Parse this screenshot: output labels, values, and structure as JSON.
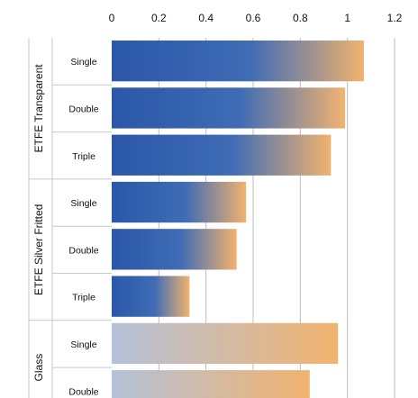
{
  "chart_data": {
    "type": "bar",
    "orientation": "horizontal",
    "xlim": [
      0,
      1.2
    ],
    "x_ticks": [
      "0",
      "0.2",
      "0.4",
      "0.6",
      "0.8",
      "1",
      "1.2"
    ],
    "groups": [
      {
        "name": "ETFE Transparent",
        "categories": [
          "Single",
          "Double",
          "Triple"
        ],
        "values": [
          1.07,
          0.99,
          0.93
        ]
      },
      {
        "name": "ETFE Silver Fritted",
        "categories": [
          "Single",
          "Double",
          "Triple"
        ],
        "values": [
          0.57,
          0.53,
          0.33
        ]
      },
      {
        "name": "Glass",
        "categories": [
          "Single",
          "Double"
        ],
        "values": [
          0.96,
          0.84
        ]
      }
    ],
    "grid": true,
    "colors": {
      "etfe_start": "#2a57a8",
      "etfe_end": "#f2b36f",
      "glass_start": "#b3c1d8",
      "glass_end": "#f2b36f",
      "separator": "#c9c9c9",
      "gridline": "#bdbdbd"
    }
  }
}
